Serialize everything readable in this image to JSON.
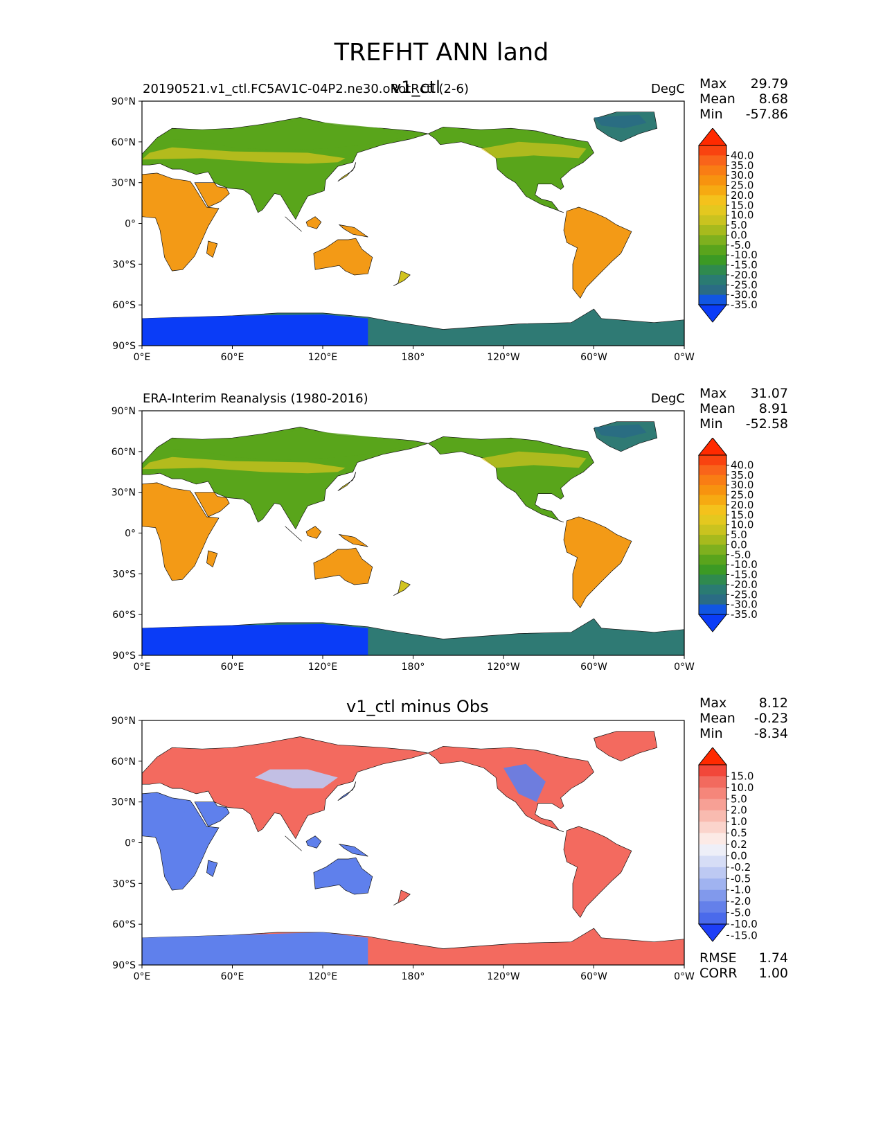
{
  "figure": {
    "title": "TREFHT ANN land",
    "x_ticks": [
      "0°E",
      "60°E",
      "120°E",
      "180°",
      "120°W",
      "60°W",
      "0°W"
    ],
    "y_ticks": [
      "90°N",
      "60°N",
      "30°N",
      "0°",
      "30°S",
      "60°S",
      "90°S"
    ],
    "colors": {
      "land_warm": "#f39a16",
      "land_mid": "#d1c31f",
      "land_cool": "#59a51b",
      "ice_blue": "#0a3cf7",
      "ice_teal": "#2f7a74",
      "diff_red": "#f36a5f",
      "diff_blue": "#5f80ec"
    }
  },
  "panels": [
    {
      "name": "test",
      "left_title": "20190521.v1_ctl.FC5AV1C-04P2.ne30.oRotRctl (2-6)",
      "center_title": "v1_ctl",
      "units": "DegC",
      "stats": {
        "max_label": "Max",
        "max": "29.79",
        "mean_label": "Mean",
        "mean": "8.68",
        "min_label": "Min",
        "min": "-57.86"
      },
      "colorbar": {
        "labels": [
          "40.0",
          "35.0",
          "30.0",
          "25.0",
          "20.0",
          "15.0",
          "10.0",
          "5.0",
          "0.0",
          "-5.0",
          "-10.0",
          "-15.0",
          "-20.0",
          "-25.0",
          "-30.0",
          "-35.0"
        ],
        "colors": [
          "#ff2a00",
          "#f94310",
          "#f9641a",
          "#f97d14",
          "#f7930f",
          "#f6aa12",
          "#f4c21c",
          "#e4c81f",
          "#cac31f",
          "#a7ba1d",
          "#7fb01e",
          "#5aa41c",
          "#3c9a24",
          "#2f8a4e",
          "#2a7b72",
          "#2a6c84",
          "#1156e2",
          "#0a3cf7"
        ]
      }
    },
    {
      "name": "reference",
      "left_title": "ERA-Interim Reanalysis (1980-2016)",
      "center_title": "",
      "units": "DegC",
      "stats": {
        "max_label": "Max",
        "max": "31.07",
        "mean_label": "Mean",
        "mean": "8.91",
        "min_label": "Min",
        "min": "-52.58"
      },
      "colorbar": {
        "labels": [
          "40.0",
          "35.0",
          "30.0",
          "25.0",
          "20.0",
          "15.0",
          "10.0",
          "5.0",
          "0.0",
          "-5.0",
          "-10.0",
          "-15.0",
          "-20.0",
          "-25.0",
          "-30.0",
          "-35.0"
        ],
        "colors": [
          "#ff2a00",
          "#f94310",
          "#f9641a",
          "#f97d14",
          "#f7930f",
          "#f6aa12",
          "#f4c21c",
          "#e4c81f",
          "#cac31f",
          "#a7ba1d",
          "#7fb01e",
          "#5aa41c",
          "#3c9a24",
          "#2f8a4e",
          "#2a7b72",
          "#2a6c84",
          "#1156e2",
          "#0a3cf7"
        ]
      }
    },
    {
      "name": "difference",
      "left_title": "",
      "center_title": "v1_ctl minus Obs",
      "units": "",
      "stats": {
        "max_label": "Max",
        "max": "8.12",
        "mean_label": "Mean",
        "mean": "-0.23",
        "min_label": "Min",
        "min": "-8.34"
      },
      "extra": {
        "rmse_label": "RMSE",
        "rmse": "1.74",
        "corr_label": "CORR",
        "corr": "1.00"
      },
      "colorbar": {
        "labels": [
          "15.0",
          "10.0",
          "5.0",
          "2.0",
          "1.0",
          "0.5",
          "0.2",
          "0.0",
          "-0.2",
          "-0.5",
          "-1.0",
          "-2.0",
          "-5.0",
          "-10.0",
          "-15.0"
        ],
        "colors": [
          "#ff2a00",
          "#f2473a",
          "#f26a5e",
          "#f5867a",
          "#f7a095",
          "#f9bbb0",
          "#fbd4cc",
          "#fceae6",
          "#eeeff8",
          "#d6ddf6",
          "#bdc9f3",
          "#a0b3f0",
          "#8199ec",
          "#6480ea",
          "#4a6aeb",
          "#1d3ef7"
        ]
      }
    }
  ]
}
